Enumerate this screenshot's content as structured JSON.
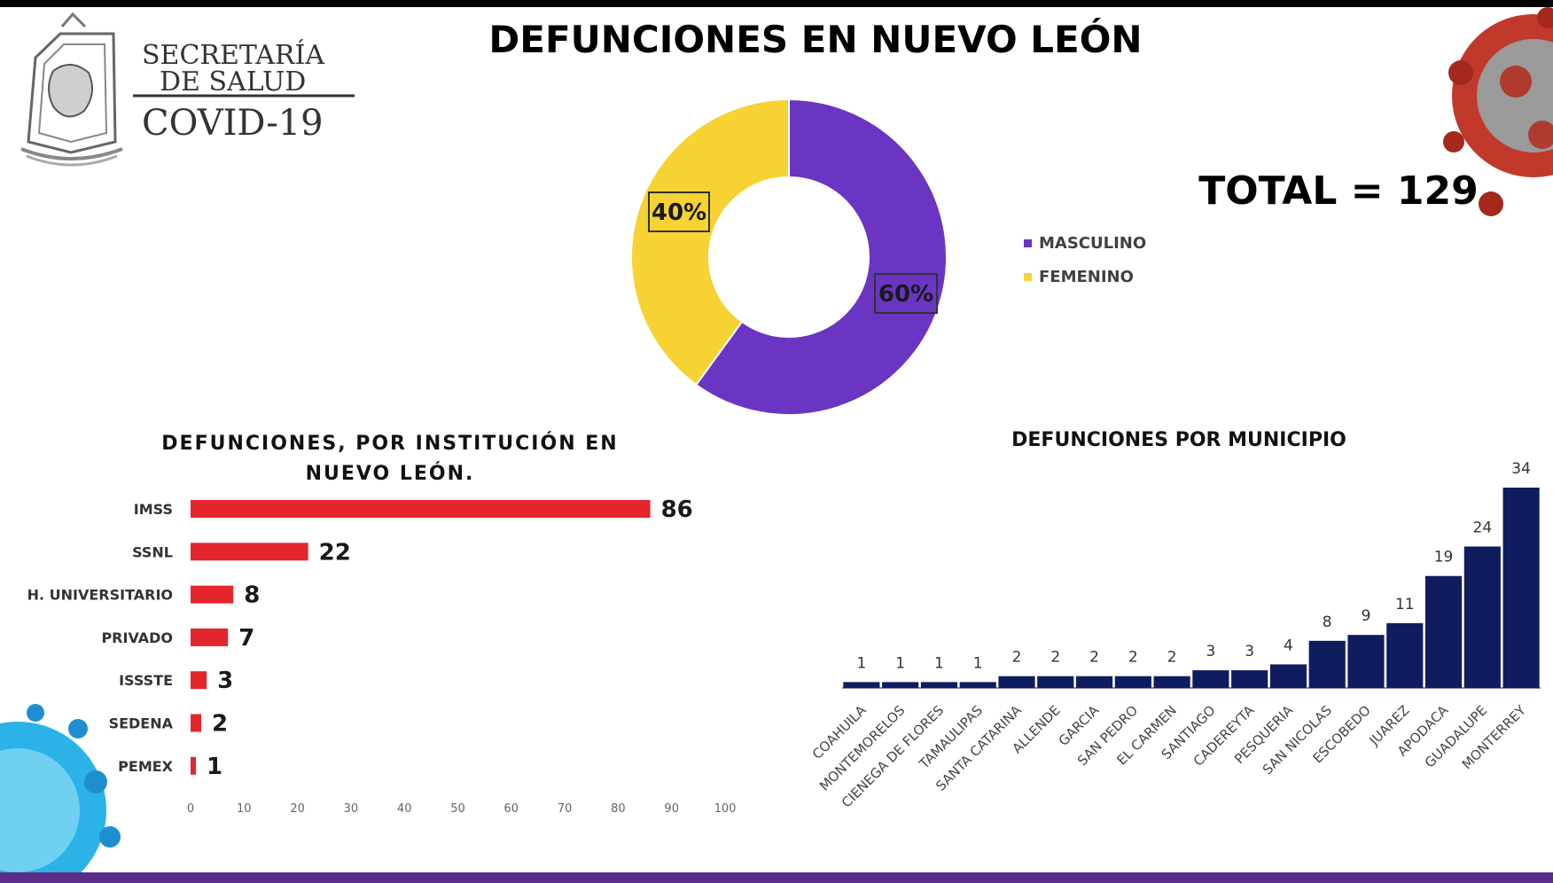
{
  "header": {
    "org_line1": "SECRETARÍA",
    "org_line2": "DE SALUD",
    "org_line3": "COVID-19",
    "title": "DEFUNCIONES EN NUEVO LEÓN",
    "total": "TOTAL = 129"
  },
  "colors": {
    "masculino": "#6a35c2",
    "femenino": "#f6d233",
    "institution_bars": "#e3262b",
    "municipio_bars": "#0f1d5e",
    "footer": "#5b2d86"
  },
  "chart_data": [
    {
      "type": "pie",
      "variant": "donut",
      "title": "",
      "slices": [
        {
          "label": "MASCULINO",
          "value": 60,
          "display": "60%"
        },
        {
          "label": "FEMENINO",
          "value": 40,
          "display": "40%"
        }
      ],
      "legend": "right"
    },
    {
      "type": "bar",
      "orientation": "horizontal",
      "title": "DEFUNCIONES, POR INSTITUCIÓN EN NUEVO LEÓN.",
      "categories": [
        "IMSS",
        "SSNL",
        "H. UNIVERSITARIO",
        "PRIVADO",
        "ISSSTE",
        "SEDENA",
        "PEMEX"
      ],
      "values": [
        86,
        22,
        8,
        7,
        3,
        2,
        1
      ],
      "xlim": [
        0,
        100
      ],
      "xticks": [
        "0",
        "10",
        "20",
        "30",
        "40",
        "50",
        "60",
        "70",
        "80",
        "90",
        "100"
      ],
      "grid": false
    },
    {
      "type": "bar",
      "orientation": "vertical",
      "title": "DEFUNCIONES POR MUNICIPIO",
      "categories": [
        "COAHUILA",
        "MONTEMORELOS",
        "CIENEGA DE FLORES",
        "TAMAULIPAS",
        "SANTA CATARINA",
        "ALLENDE",
        "GARCIA",
        "SAN PEDRO",
        "EL CARMEN",
        "SANTIAGO",
        "CADEREYTA",
        "PESQUERIA",
        "SAN NICOLAS",
        "ESCOBEDO",
        "JUAREZ",
        "APODACA",
        "GUADALUPE",
        "MONTERREY"
      ],
      "values": [
        1,
        1,
        1,
        1,
        2,
        2,
        2,
        2,
        2,
        3,
        3,
        4,
        8,
        9,
        11,
        19,
        24,
        34
      ],
      "grid": false
    }
  ]
}
